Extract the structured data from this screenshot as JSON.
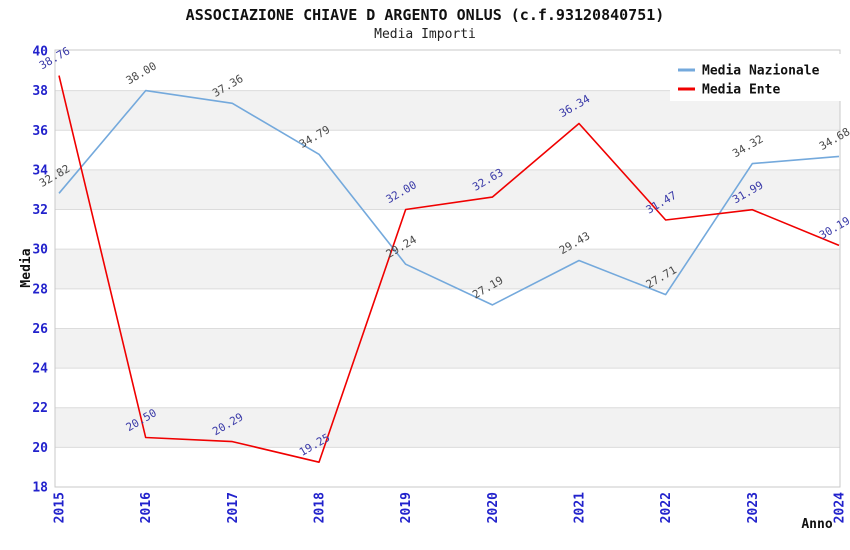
{
  "title": "ASSOCIAZIONE CHIAVE D ARGENTO ONLUS (c.f.93120840751)",
  "subtitle": "Media Importi",
  "chart_data": {
    "type": "line",
    "x": [
      "2015",
      "2016",
      "2017",
      "2018",
      "2019",
      "2020",
      "2021",
      "2022",
      "2023",
      "2024"
    ],
    "series": [
      {
        "name": "Media Nazionale",
        "color": "#74a9dc",
        "label_color": "#4a4a4a",
        "values": [
          32.82,
          38.0,
          37.36,
          34.79,
          29.24,
          27.19,
          29.43,
          27.71,
          34.32,
          34.68
        ],
        "labels": [
          "32.82",
          "38.00",
          "37.36",
          "34.79",
          "29.24",
          "27.19",
          "29.43",
          "27.71",
          "34.32",
          "34.68"
        ]
      },
      {
        "name": "Media Ente",
        "color": "#f00000",
        "label_color": "#3a3aa8",
        "values": [
          38.76,
          20.5,
          20.29,
          19.25,
          32.0,
          32.63,
          36.34,
          31.47,
          31.99,
          30.19
        ],
        "labels": [
          "38.76",
          "20.50",
          "20.29",
          "19.25",
          "32.00",
          "32.63",
          "36.34",
          "31.47",
          "31.99",
          "30.19"
        ]
      }
    ],
    "xlabel": "Anno",
    "ylabel": "Media",
    "ylim": [
      18,
      40
    ],
    "y_ticks": [
      18,
      20,
      22,
      24,
      26,
      28,
      30,
      32,
      34,
      36,
      38,
      40
    ],
    "grid": "horizontal",
    "bands": "alternating-gray",
    "legend_position": "top-right"
  },
  "colors": {
    "tick_label": "#2222cc",
    "gridline": "#dcdcdc",
    "band_fill": "#f2f2f2",
    "plot_border": "#c9c9c9",
    "axis_title": "#111111",
    "legend_bg": "#ffffff",
    "legend_text": "#111111"
  }
}
